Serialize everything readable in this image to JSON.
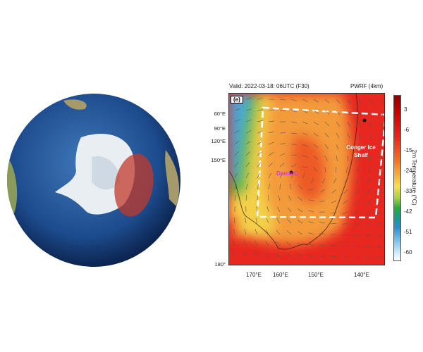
{
  "globe": {
    "description_icon": "antarctica-globe",
    "highlight_color": "#c0392b"
  },
  "map": {
    "valid_label": "Valid: 2022-03-18: 06UTC (F30)",
    "model_label": "PWRF (4km)",
    "panel_label": "(e)",
    "stations": [
      {
        "name": "Dome-C",
        "color": "#d63bd6"
      },
      {
        "name": "Conger Ice Shelf",
        "color": "#ffffff"
      }
    ],
    "y_ticks": [
      "60°E",
      "90°E",
      "120°E",
      "150°E",
      "180°"
    ],
    "x_ticks": [
      "170°E",
      "160°E",
      "150°E",
      "140°E"
    ],
    "colorbar": {
      "title": "2m Temperature (°C)",
      "ticks": [
        "3",
        "-6",
        "-15",
        "-24",
        "-33",
        "-42",
        "-51",
        "-60"
      ]
    }
  }
}
